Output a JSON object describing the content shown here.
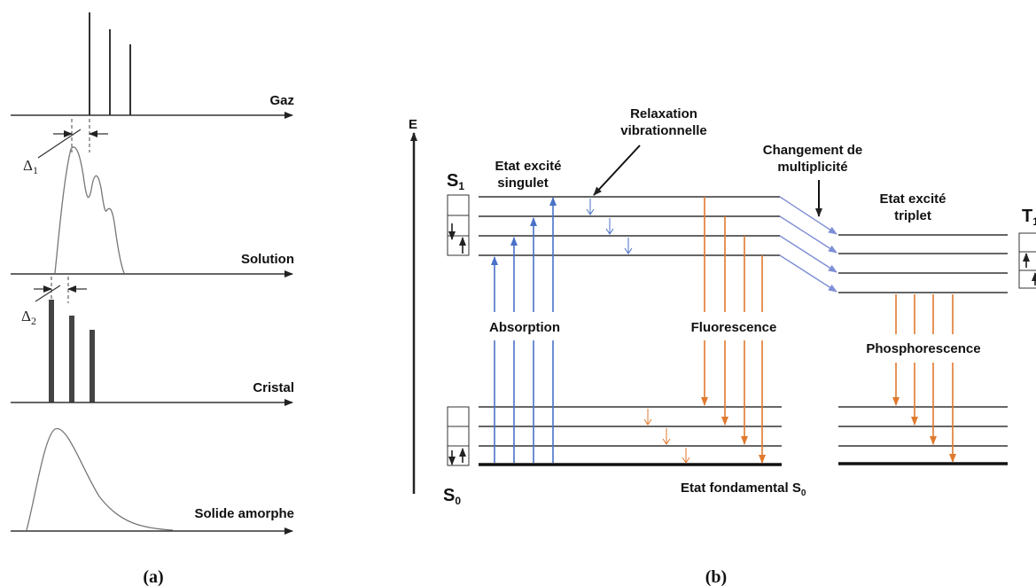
{
  "panel_a": {
    "caption": "(a)",
    "delta1": "Δ",
    "delta1_sub": "1",
    "delta2": "Δ",
    "delta2_sub": "2",
    "rows": [
      {
        "label": "Gaz"
      },
      {
        "label": "Solution"
      },
      {
        "label": "Cristal"
      },
      {
        "label": "Solide amorphe"
      }
    ]
  },
  "panel_b": {
    "caption": "(b)",
    "axis_label": "E",
    "s1": "S",
    "s1_sub": "1",
    "s0": "S",
    "s0_sub": "0",
    "t1": "T",
    "t1_sub": "1",
    "singlet_label_1": "Etat excité",
    "singlet_label_2": "singulet",
    "triplet_label_1": "Etat excité",
    "triplet_label_2": "triplet",
    "relax_label_1": "Relaxation",
    "relax_label_2": "vibrationnelle",
    "mult_label_1": "Changement de",
    "mult_label_2": "multiplicité",
    "absorption": "Absorption",
    "fluorescence": "Fluorescence",
    "phosphorescence": "Phosphorescence",
    "ground_label": "Etat fondamental S",
    "ground_sub": "0"
  },
  "colors": {
    "absorption": "#4a72c8",
    "emission": "#e07a2e",
    "crossing": "#7f8fd6",
    "line": "#333333"
  }
}
